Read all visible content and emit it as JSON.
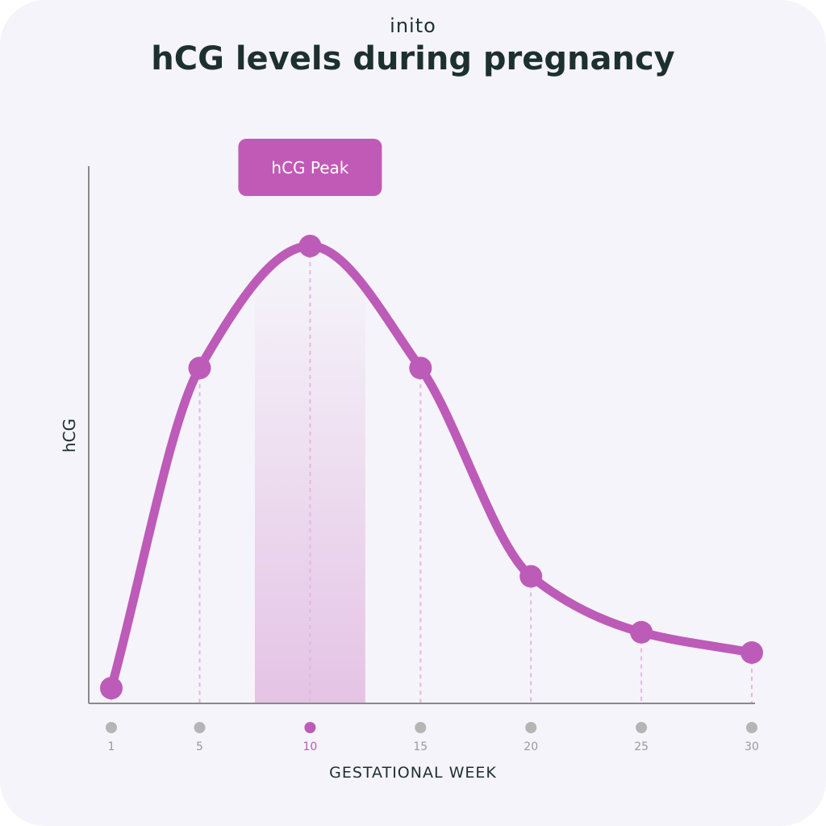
{
  "brand": "inito",
  "title": "hCG levels during pregnancy",
  "chart_data": {
    "type": "line",
    "title": "hCG levels during pregnancy",
    "xlabel": "GESTATIONAL WEEK",
    "ylabel": "hCG",
    "x": [
      1,
      5,
      10,
      15,
      20,
      25,
      30
    ],
    "tick_labels": [
      "1",
      "5",
      "10",
      "15",
      "20",
      "25",
      "30"
    ],
    "highlight_tick": "10",
    "series": [
      {
        "values": [
          3,
          66,
          90,
          66,
          25,
          14,
          10
        ]
      }
    ],
    "ylim": [
      0,
      100
    ],
    "annotation": {
      "label": "hCG Peak",
      "x_range": [
        7.5,
        12.5
      ]
    },
    "grid": false,
    "colors": {
      "line": "#bd5bb8",
      "badge": "#c15ab7",
      "axis": "#888888",
      "tick_dot": "#b5b5b5",
      "tick_label": "#9a9a9a",
      "dark_text": "#1d3030"
    }
  }
}
